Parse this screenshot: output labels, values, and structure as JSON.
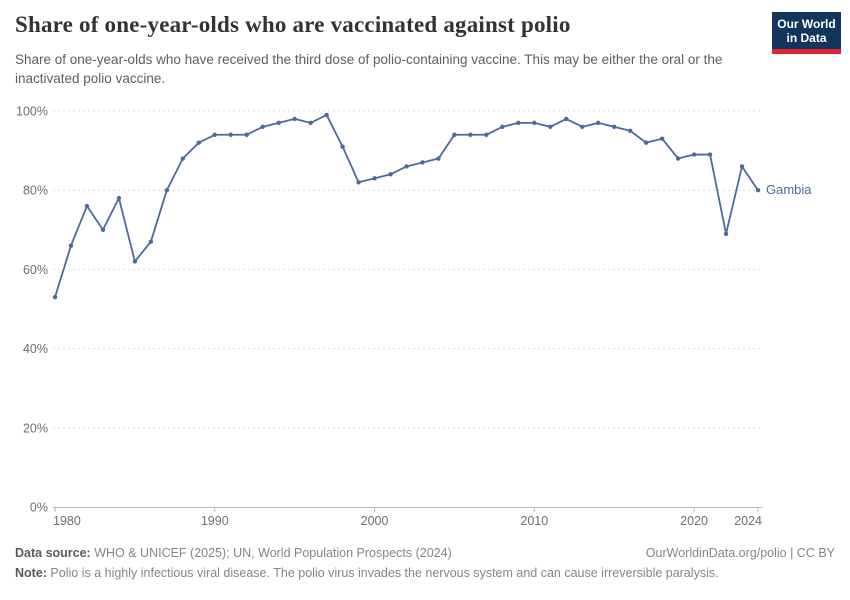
{
  "logo": {
    "line1": "Our World",
    "line2": "in Data"
  },
  "chart_data": {
    "type": "line",
    "title": "Share of one-year-olds who are vaccinated against polio",
    "subtitle": "Share of one-year-olds who have received the third dose of polio-containing vaccine. This may be either the oral or the inactivated polio vaccine.",
    "xlabel": "",
    "ylabel": "",
    "xlim": [
      1980,
      2024
    ],
    "ylim": [
      0,
      100
    ],
    "grid": "horizontal-dashed",
    "legend_position": "end-of-line-label",
    "x_ticks": [
      {
        "value": 1980,
        "label": "1980"
      },
      {
        "value": 1990,
        "label": "1990"
      },
      {
        "value": 2000,
        "label": "2000"
      },
      {
        "value": 2010,
        "label": "2010"
      },
      {
        "value": 2020,
        "label": "2020"
      },
      {
        "value": 2024,
        "label": "2024"
      }
    ],
    "y_ticks": [
      {
        "value": 0,
        "label": "0%"
      },
      {
        "value": 20,
        "label": "20%"
      },
      {
        "value": 40,
        "label": "40%"
      },
      {
        "value": 60,
        "label": "60%"
      },
      {
        "value": 80,
        "label": "80%"
      },
      {
        "value": 100,
        "label": "100%"
      }
    ],
    "series": [
      {
        "name": "Gambia",
        "color": "#4c6a9c",
        "x": [
          1980,
          1981,
          1982,
          1983,
          1984,
          1985,
          1986,
          1987,
          1988,
          1989,
          1990,
          1991,
          1992,
          1993,
          1994,
          1995,
          1996,
          1997,
          1998,
          1999,
          2000,
          2001,
          2002,
          2003,
          2004,
          2005,
          2006,
          2007,
          2008,
          2009,
          2010,
          2011,
          2012,
          2013,
          2014,
          2015,
          2016,
          2017,
          2018,
          2019,
          2020,
          2021,
          2022,
          2023,
          2024
        ],
        "values": [
          53,
          66,
          76,
          70,
          78,
          62,
          67,
          80,
          88,
          92,
          94,
          94,
          94,
          96,
          97,
          98,
          97,
          99,
          91,
          82,
          83,
          84,
          86,
          87,
          88,
          94,
          94,
          94,
          96,
          97,
          97,
          96,
          98,
          96,
          97,
          96,
          95,
          92,
          93,
          88,
          89,
          89,
          69,
          86,
          80
        ]
      }
    ]
  },
  "footer": {
    "data_source_label": "Data source:",
    "data_source_text": " WHO & UNICEF (2025); UN, World Population Prospects (2024)",
    "attribution": "OurWorldinData.org/polio | CC BY",
    "note_label": "Note:",
    "note_text": " Polio is a highly infectious viral disease. The polio virus invades the nervous system and can cause irreversible paralysis."
  }
}
